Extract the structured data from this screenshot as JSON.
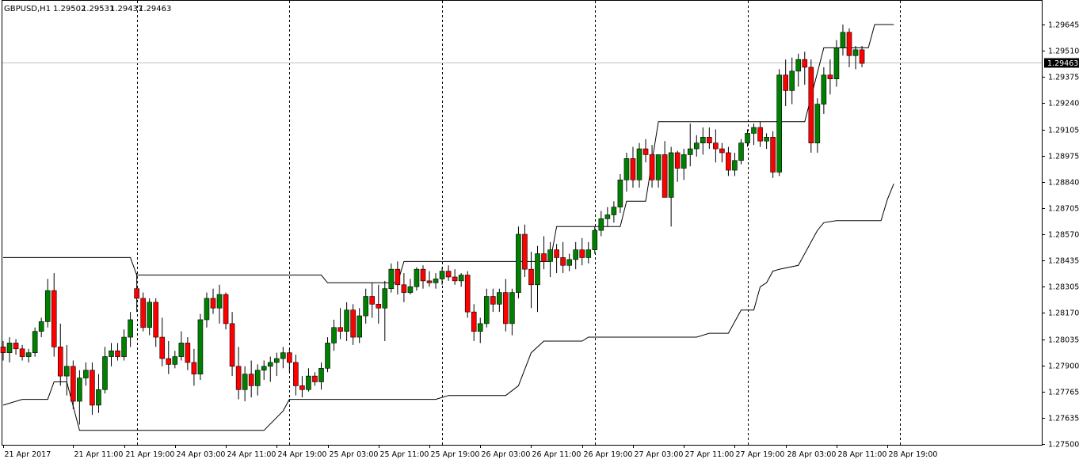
{
  "header": {
    "symbol": "GBPUSD,H1",
    "open": "1.29502",
    "high": "1.29531",
    "low": "1.29437",
    "close": "1.29463"
  },
  "colors": {
    "bull": "#008000",
    "bear": "#ff0000",
    "wick": "#000000",
    "envelope": "#000000",
    "grid": "#000000",
    "price_line": "#c0c0c0"
  },
  "chart_data": {
    "type": "candlestick",
    "title": "GBPUSD,H1",
    "ylim": [
      1.275,
      1.297
    ],
    "y_ticks": [
      "1.29645",
      "1.29510",
      "1.29375",
      "1.29240",
      "1.29105",
      "1.28975",
      "1.28840",
      "1.28705",
      "1.28570",
      "1.28435",
      "1.28305",
      "1.28170",
      "1.28035",
      "1.27900",
      "1.27765",
      "1.27635",
      "1.27500"
    ],
    "x_ticks": [
      {
        "label": "21 Apr 2017",
        "bar": 0
      },
      {
        "label": "21 Apr 11:00",
        "bar": 11
      },
      {
        "label": "21 Apr 19:00",
        "bar": 19
      },
      {
        "label": "24 Apr 03:00",
        "bar": 27
      },
      {
        "label": "24 Apr 11:00",
        "bar": 35
      },
      {
        "label": "24 Apr 19:00",
        "bar": 43
      },
      {
        "label": "25 Apr 03:00",
        "bar": 51
      },
      {
        "label": "25 Apr 11:00",
        "bar": 59
      },
      {
        "label": "25 Apr 19:00",
        "bar": 67
      },
      {
        "label": "26 Apr 03:00",
        "bar": 75
      },
      {
        "label": "26 Apr 11:00",
        "bar": 83
      },
      {
        "label": "26 Apr 19:00",
        "bar": 91
      },
      {
        "label": "27 Apr 03:00",
        "bar": 99
      },
      {
        "label": "27 Apr 11:00",
        "bar": 107
      },
      {
        "label": "27 Apr 19:00",
        "bar": 115
      },
      {
        "label": "28 Apr 03:00",
        "bar": 123
      },
      {
        "label": "28 Apr 11:00",
        "bar": 131
      },
      {
        "label": "28 Apr 19:00",
        "bar": 139
      }
    ],
    "separators_bar": [
      21,
      45,
      69,
      93,
      117,
      141
    ],
    "current_price": 1.29463,
    "current_price_label": "1.29463",
    "candles": [
      [
        1.28,
        1.2803,
        1.2793,
        1.2797
      ],
      [
        1.2797,
        1.2805,
        1.2792,
        1.2802
      ],
      [
        1.2802,
        1.2804,
        1.2796,
        1.2799
      ],
      [
        1.2799,
        1.2801,
        1.2793,
        1.2795
      ],
      [
        1.2795,
        1.2799,
        1.2792,
        1.2797
      ],
      [
        1.2797,
        1.281,
        1.2795,
        1.2808
      ],
      [
        1.2808,
        1.2815,
        1.2805,
        1.2813
      ],
      [
        1.2813,
        1.2835,
        1.281,
        1.2829
      ],
      [
        1.2829,
        1.2838,
        1.2795,
        1.28
      ],
      [
        1.28,
        1.2812,
        1.278,
        1.2785
      ],
      [
        1.2785,
        1.2801,
        1.2775,
        1.279
      ],
      [
        1.279,
        1.2793,
        1.2768,
        1.2772
      ],
      [
        1.2772,
        1.2788,
        1.276,
        1.2784
      ],
      [
        1.2784,
        1.2792,
        1.278,
        1.2788
      ],
      [
        1.2788,
        1.2792,
        1.2765,
        1.277
      ],
      [
        1.277,
        1.2786,
        1.2766,
        1.2778
      ],
      [
        1.2778,
        1.28,
        1.2776,
        1.2795
      ],
      [
        1.2795,
        1.2802,
        1.279,
        1.2798
      ],
      [
        1.2798,
        1.2802,
        1.2793,
        1.2795
      ],
      [
        1.2795,
        1.2809,
        1.2793,
        1.2805
      ],
      [
        1.2805,
        1.2818,
        1.28,
        1.2814
      ],
      [
        1.283,
        1.2838,
        1.2818,
        1.2825
      ],
      [
        1.2825,
        1.2828,
        1.2808,
        1.281
      ],
      [
        1.281,
        1.2825,
        1.2806,
        1.2823
      ],
      [
        1.2823,
        1.2825,
        1.28,
        1.2805
      ],
      [
        1.2805,
        1.2815,
        1.279,
        1.2794
      ],
      [
        1.2794,
        1.2803,
        1.2786,
        1.2791
      ],
      [
        1.2791,
        1.2798,
        1.2789,
        1.2795
      ],
      [
        1.2795,
        1.2808,
        1.2793,
        1.2802
      ],
      [
        1.2802,
        1.2805,
        1.2788,
        1.2792
      ],
      [
        1.2792,
        1.2799,
        1.278,
        1.2786
      ],
      [
        1.2786,
        1.2817,
        1.2783,
        1.2814
      ],
      [
        1.2814,
        1.2828,
        1.281,
        1.2825
      ],
      [
        1.2825,
        1.283,
        1.2817,
        1.282
      ],
      [
        1.282,
        1.2832,
        1.2812,
        1.2827
      ],
      [
        1.2827,
        1.2828,
        1.2809,
        1.2812
      ],
      [
        1.2812,
        1.2818,
        1.2785,
        1.279
      ],
      [
        1.279,
        1.28,
        1.2773,
        1.2778
      ],
      [
        1.2778,
        1.279,
        1.2772,
        1.2786
      ],
      [
        1.2786,
        1.2793,
        1.2774,
        1.278
      ],
      [
        1.278,
        1.2791,
        1.2775,
        1.2788
      ],
      [
        1.2788,
        1.2793,
        1.2783,
        1.279
      ],
      [
        1.279,
        1.2795,
        1.2782,
        1.2792
      ],
      [
        1.2792,
        1.2797,
        1.2785,
        1.2794
      ],
      [
        1.2794,
        1.28,
        1.2789,
        1.2797
      ],
      [
        1.2797,
        1.2799,
        1.2787,
        1.2792
      ],
      [
        1.2792,
        1.2796,
        1.2775,
        1.278
      ],
      [
        1.278,
        1.2785,
        1.2774,
        1.2778
      ],
      [
        1.2778,
        1.2789,
        1.2777,
        1.2785
      ],
      [
        1.2785,
        1.2787,
        1.278,
        1.2782
      ],
      [
        1.2782,
        1.2792,
        1.2778,
        1.2789
      ],
      [
        1.2789,
        1.2805,
        1.2787,
        1.2802
      ],
      [
        1.2802,
        1.2814,
        1.2798,
        1.281
      ],
      [
        1.281,
        1.282,
        1.2804,
        1.2808
      ],
      [
        1.2808,
        1.2823,
        1.2803,
        1.2819
      ],
      [
        1.2819,
        1.2822,
        1.2801,
        1.2805
      ],
      [
        1.2805,
        1.282,
        1.2802,
        1.2816
      ],
      [
        1.2816,
        1.283,
        1.2812,
        1.2826
      ],
      [
        1.2826,
        1.2833,
        1.2815,
        1.2822
      ],
      [
        1.2822,
        1.2832,
        1.2812,
        1.282
      ],
      [
        1.282,
        1.2834,
        1.2803,
        1.283
      ],
      [
        1.283,
        1.2843,
        1.2828,
        1.284
      ],
      [
        1.284,
        1.2844,
        1.2827,
        1.2832
      ],
      [
        1.2832,
        1.2838,
        1.2823,
        1.2828
      ],
      [
        1.2828,
        1.2835,
        1.2827,
        1.2831
      ],
      [
        1.2831,
        1.2841,
        1.2829,
        1.284
      ],
      [
        1.284,
        1.2842,
        1.283,
        1.2834
      ],
      [
        1.2834,
        1.2839,
        1.2831,
        1.2833
      ],
      [
        1.2833,
        1.2838,
        1.283,
        1.2835
      ],
      [
        1.2835,
        1.2841,
        1.2832,
        1.2839
      ],
      [
        1.2839,
        1.2842,
        1.2834,
        1.2836
      ],
      [
        1.2836,
        1.284,
        1.2832,
        1.2834
      ],
      [
        1.2834,
        1.2838,
        1.2831,
        1.2837
      ],
      [
        1.2837,
        1.2839,
        1.2815,
        1.2818
      ],
      [
        1.2818,
        1.2822,
        1.2803,
        1.2808
      ],
      [
        1.2808,
        1.2815,
        1.2802,
        1.2812
      ],
      [
        1.2812,
        1.283,
        1.281,
        1.2826
      ],
      [
        1.2826,
        1.283,
        1.2818,
        1.2822
      ],
      [
        1.2822,
        1.283,
        1.2818,
        1.2828
      ],
      [
        1.2828,
        1.2835,
        1.2808,
        1.2812
      ],
      [
        1.2812,
        1.283,
        1.2806,
        1.2828
      ],
      [
        1.2828,
        1.2862,
        1.2825,
        1.2858
      ],
      [
        1.2858,
        1.2863,
        1.2836,
        1.284
      ],
      [
        1.284,
        1.2849,
        1.282,
        1.2832
      ],
      [
        1.2832,
        1.2852,
        1.2818,
        1.2848
      ],
      [
        1.2848,
        1.2857,
        1.284,
        1.2844
      ],
      [
        1.2844,
        1.2854,
        1.2836,
        1.285
      ],
      [
        1.285,
        1.2853,
        1.2838,
        1.2846
      ],
      [
        1.2846,
        1.2854,
        1.2838,
        1.2842
      ],
      [
        1.2842,
        1.2848,
        1.2839,
        1.2845
      ],
      [
        1.2845,
        1.2854,
        1.284,
        1.285
      ],
      [
        1.285,
        1.2856,
        1.2842,
        1.2846
      ],
      [
        1.2846,
        1.2854,
        1.2843,
        1.285
      ],
      [
        1.285,
        1.2862,
        1.2848,
        1.286
      ],
      [
        1.286,
        1.287,
        1.2857,
        1.2866
      ],
      [
        1.2866,
        1.2872,
        1.2862,
        1.2868
      ],
      [
        1.2868,
        1.2875,
        1.2864,
        1.2872
      ],
      [
        1.2872,
        1.2889,
        1.2869,
        1.2886
      ],
      [
        1.2886,
        1.29,
        1.288,
        1.2897
      ],
      [
        1.2897,
        1.2903,
        1.2882,
        1.2886
      ],
      [
        1.2886,
        1.2905,
        1.2882,
        1.2902
      ],
      [
        1.2902,
        1.2907,
        1.2895,
        1.2899
      ],
      [
        1.2899,
        1.2904,
        1.2882,
        1.2886
      ],
      [
        1.2886,
        1.2898,
        1.2882,
        1.2899
      ],
      [
        1.2899,
        1.2906,
        1.2878,
        1.2877
      ],
      [
        1.2877,
        1.2903,
        1.2862,
        1.29
      ],
      [
        1.29,
        1.2901,
        1.2885,
        1.2892
      ],
      [
        1.2892,
        1.2902,
        1.2886,
        1.2899
      ],
      [
        1.2899,
        1.2915,
        1.2893,
        1.2902
      ],
      [
        1.2902,
        1.2909,
        1.2898,
        1.2905
      ],
      [
        1.2905,
        1.2913,
        1.2899,
        1.2908
      ],
      [
        1.2908,
        1.2913,
        1.2902,
        1.2905
      ],
      [
        1.2905,
        1.2912,
        1.2895,
        1.2902
      ],
      [
        1.2902,
        1.2905,
        1.2895,
        1.29
      ],
      [
        1.29,
        1.2903,
        1.2888,
        1.2891
      ],
      [
        1.2891,
        1.29,
        1.2888,
        1.2896
      ],
      [
        1.2896,
        1.2907,
        1.2894,
        1.2905
      ],
      [
        1.2905,
        1.2912,
        1.2903,
        1.291
      ],
      [
        1.291,
        1.2915,
        1.2904,
        1.2913
      ],
      [
        1.2913,
        1.2916,
        1.2903,
        1.2906
      ],
      [
        1.2906,
        1.291,
        1.2902,
        1.2908
      ],
      [
        1.2908,
        1.2911,
        1.2887,
        1.289
      ],
      [
        1.289,
        1.2943,
        1.2888,
        1.294
      ],
      [
        1.294,
        1.2948,
        1.2924,
        1.2932
      ],
      [
        1.2932,
        1.2949,
        1.2925,
        1.2942
      ],
      [
        1.2942,
        1.2951,
        1.2934,
        1.2948
      ],
      [
        1.2948,
        1.2952,
        1.2935,
        1.2944
      ],
      [
        1.2944,
        1.2948,
        1.29,
        1.2905
      ],
      [
        1.2905,
        1.2928,
        1.29,
        1.2925
      ],
      [
        1.2925,
        1.2944,
        1.292,
        1.294
      ],
      [
        1.294,
        1.2948,
        1.293,
        1.2938
      ],
      [
        1.2938,
        1.2958,
        1.2934,
        1.2954
      ],
      [
        1.2954,
        1.2966,
        1.295,
        1.2962
      ],
      [
        1.2962,
        1.2964,
        1.2944,
        1.295
      ],
      [
        1.295,
        1.2955,
        1.2943,
        1.2953
      ],
      [
        1.2953,
        1.2955,
        1.2944,
        1.2946
      ]
    ],
    "upper_envelope": [
      {
        "bar": 0,
        "y": 1.2846
      },
      {
        "bar": 20,
        "y": 1.2846
      },
      {
        "bar": 21,
        "y": 1.2837
      },
      {
        "bar": 50,
        "y": 1.2837
      },
      {
        "bar": 51,
        "y": 1.2833
      },
      {
        "bar": 62,
        "y": 1.2833
      },
      {
        "bar": 63,
        "y": 1.2844
      },
      {
        "bar": 86,
        "y": 1.2844
      },
      {
        "bar": 87,
        "y": 1.2862
      },
      {
        "bar": 97,
        "y": 1.2862
      },
      {
        "bar": 98,
        "y": 1.2875
      },
      {
        "bar": 101,
        "y": 1.2875
      },
      {
        "bar": 103,
        "y": 1.2916
      },
      {
        "bar": 126,
        "y": 1.2916
      },
      {
        "bar": 129,
        "y": 1.2954
      },
      {
        "bar": 136,
        "y": 1.2954
      },
      {
        "bar": 137,
        "y": 1.2966
      },
      {
        "bar": 140,
        "y": 1.2966
      }
    ],
    "lower_envelope": [
      {
        "bar": 0,
        "y": 1.277
      },
      {
        "bar": 3,
        "y": 1.2773
      },
      {
        "bar": 7,
        "y": 1.2773
      },
      {
        "bar": 8,
        "y": 1.2782
      },
      {
        "bar": 10,
        "y": 1.2782
      },
      {
        "bar": 12,
        "y": 1.2757
      },
      {
        "bar": 41,
        "y": 1.2757
      },
      {
        "bar": 44,
        "y": 1.2767
      },
      {
        "bar": 45,
        "y": 1.2773
      },
      {
        "bar": 68,
        "y": 1.2773
      },
      {
        "bar": 70,
        "y": 1.2775
      },
      {
        "bar": 79,
        "y": 1.2775
      },
      {
        "bar": 81,
        "y": 1.278
      },
      {
        "bar": 83,
        "y": 1.2797
      },
      {
        "bar": 85,
        "y": 1.2803
      },
      {
        "bar": 91,
        "y": 1.2803
      },
      {
        "bar": 92,
        "y": 1.2805
      },
      {
        "bar": 109,
        "y": 1.2805
      },
      {
        "bar": 111,
        "y": 1.2807
      },
      {
        "bar": 114,
        "y": 1.2807
      },
      {
        "bar": 116,
        "y": 1.2819
      },
      {
        "bar": 118,
        "y": 1.2819
      },
      {
        "bar": 119,
        "y": 1.2831
      },
      {
        "bar": 120,
        "y": 1.2833
      },
      {
        "bar": 121,
        "y": 1.2839
      },
      {
        "bar": 122,
        "y": 1.284
      },
      {
        "bar": 125,
        "y": 1.2842
      },
      {
        "bar": 128,
        "y": 1.286
      },
      {
        "bar": 129,
        "y": 1.2864
      },
      {
        "bar": 131,
        "y": 1.2865
      },
      {
        "bar": 138,
        "y": 1.2865
      },
      {
        "bar": 139,
        "y": 1.2876
      },
      {
        "bar": 140,
        "y": 1.2884
      }
    ]
  }
}
